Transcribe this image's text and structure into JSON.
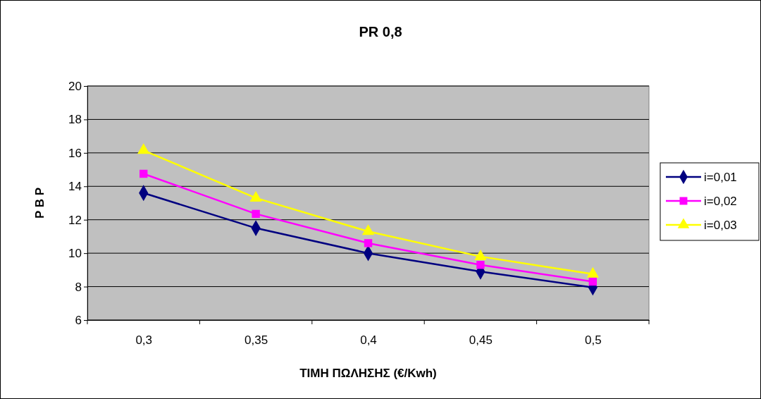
{
  "chart_data": {
    "type": "line",
    "title": "PR 0,8",
    "xlabel": "ΤΙΜΗ ΠΩΛΗΣΗΣ (€/Kwh)",
    "ylabel": "P B P",
    "categories": [
      "0,3",
      "0,35",
      "0,4",
      "0,45",
      "0,5"
    ],
    "series": [
      {
        "name": "i=0,01",
        "color": "#000080",
        "marker": "diamond",
        "values": [
          13.6,
          11.5,
          10.0,
          8.9,
          7.95
        ]
      },
      {
        "name": "i=0,02",
        "color": "#ff00ff",
        "marker": "square",
        "values": [
          14.75,
          12.35,
          10.6,
          9.3,
          8.3
        ]
      },
      {
        "name": "i=0,03",
        "color": "#ffff00",
        "marker": "triangle",
        "values": [
          16.15,
          13.3,
          11.3,
          9.8,
          8.75
        ]
      }
    ],
    "ylim": [
      6,
      20
    ],
    "yticks": [
      6,
      8,
      10,
      12,
      14,
      16,
      18,
      20
    ],
    "grid": "y",
    "legend": "right"
  }
}
